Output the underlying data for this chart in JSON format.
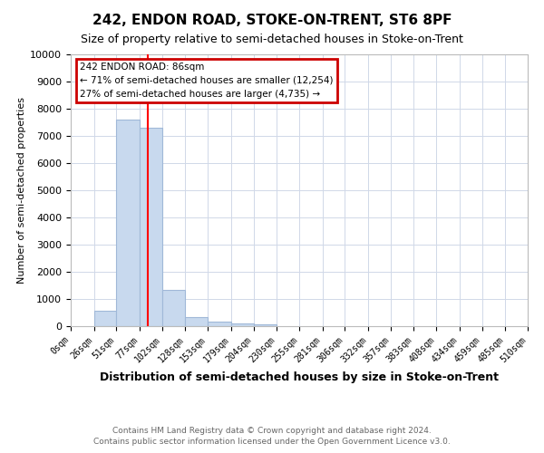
{
  "title": "242, ENDON ROAD, STOKE-ON-TRENT, ST6 8PF",
  "subtitle": "Size of property relative to semi-detached houses in Stoke-on-Trent",
  "xlabel": "Distribution of semi-detached houses by size in Stoke-on-Trent",
  "ylabel": "Number of semi-detached properties",
  "footer1": "Contains HM Land Registry data © Crown copyright and database right 2024.",
  "footer2": "Contains public sector information licensed under the Open Government Licence v3.0.",
  "bin_edges": [
    0,
    26,
    51,
    77,
    102,
    128,
    153,
    179,
    204,
    230,
    255,
    281,
    306,
    332,
    357,
    383,
    408,
    434,
    459,
    485,
    510
  ],
  "bar_heights": [
    0,
    560,
    7600,
    7300,
    1350,
    340,
    170,
    100,
    80,
    0,
    0,
    0,
    0,
    0,
    0,
    0,
    0,
    0,
    0,
    0
  ],
  "bar_color": "#c8d9ee",
  "bar_edge_color": "#a0b8d8",
  "red_line_x": 86,
  "ylim": [
    0,
    10000
  ],
  "annotation_title": "242 ENDON ROAD: 86sqm",
  "annotation_line1": "← 71% of semi-detached houses are smaller (12,254)",
  "annotation_line2": "27% of semi-detached houses are larger (4,735) →",
  "annotation_box_color": "#ffffff",
  "annotation_border_color": "#cc0000",
  "tick_labels": [
    "0sqm",
    "26sqm",
    "51sqm",
    "77sqm",
    "102sqm",
    "128sqm",
    "153sqm",
    "179sqm",
    "204sqm",
    "230sqm",
    "255sqm",
    "281sqm",
    "306sqm",
    "332sqm",
    "357sqm",
    "383sqm",
    "408sqm",
    "434sqm",
    "459sqm",
    "485sqm",
    "510sqm"
  ],
  "yticks": [
    0,
    1000,
    2000,
    3000,
    4000,
    5000,
    6000,
    7000,
    8000,
    9000,
    10000
  ],
  "background_color": "#ffffff",
  "grid_color": "#d0d8e8"
}
